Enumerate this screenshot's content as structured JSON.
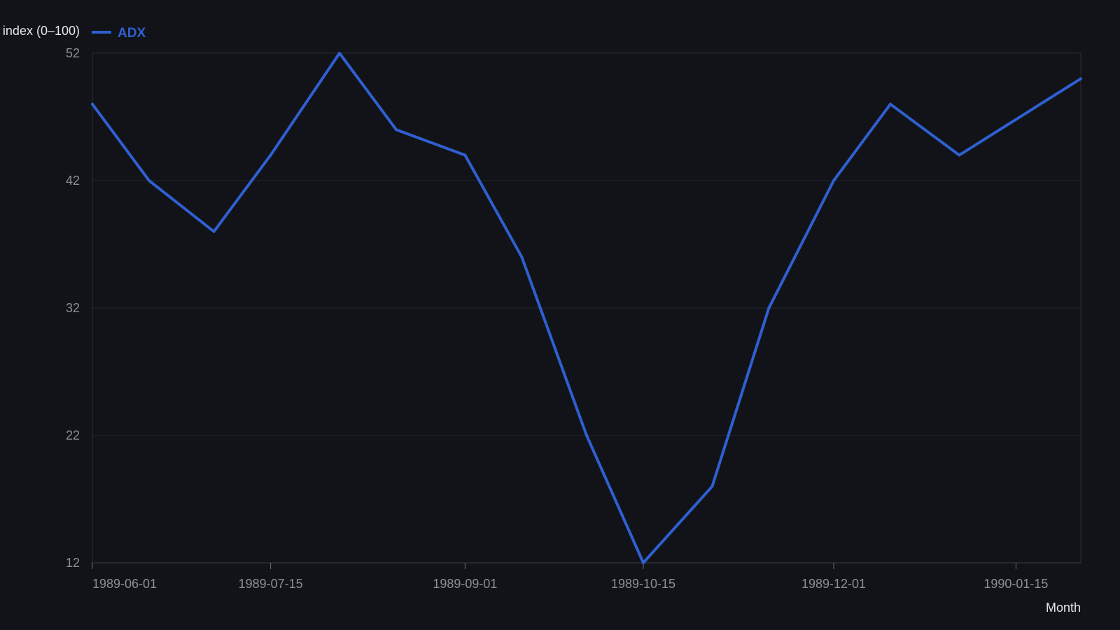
{
  "chart_data": {
    "type": "line",
    "ylabel": "index (0–100)",
    "xlabel": "Month",
    "ylim": [
      12,
      52
    ],
    "xlim": [
      "1989-06-01",
      "1990-01-31"
    ],
    "yticks": [
      12,
      22,
      32,
      42,
      52
    ],
    "xticks": [
      "1989-06-01",
      "1989-07-15",
      "1989-09-01",
      "1989-10-15",
      "1989-12-01",
      "1990-01-15"
    ],
    "grid": true,
    "legend_position": "top-left",
    "series": [
      {
        "name": "ADX",
        "color": "#2f5fd0",
        "x": [
          "1989-06-01",
          "1989-06-15",
          "1989-07-01",
          "1989-07-15",
          "1989-08-01",
          "1989-08-15",
          "1989-09-01",
          "1989-09-15",
          "1989-10-01",
          "1989-10-15",
          "1989-11-01",
          "1989-11-15",
          "1989-12-01",
          "1989-12-15",
          "1990-01-01",
          "1990-01-31"
        ],
        "values": [
          48,
          42,
          38,
          44,
          52,
          46,
          44,
          36,
          22,
          12,
          18,
          32,
          42,
          48,
          44,
          50
        ]
      }
    ]
  }
}
